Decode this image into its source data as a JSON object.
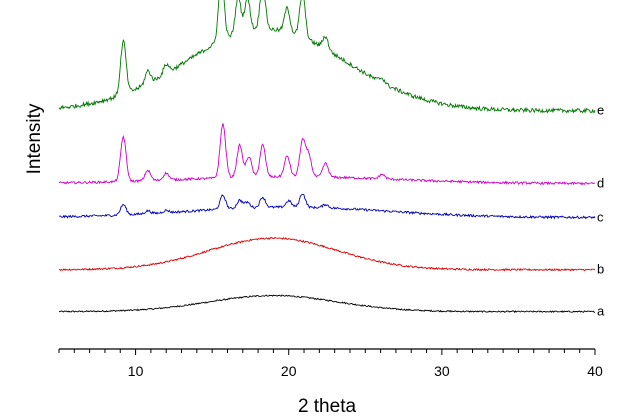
{
  "chart_data": {
    "type": "line",
    "title": "",
    "xlabel": "2 theta",
    "ylabel": "Intensity",
    "xlim": [
      5,
      40
    ],
    "x_ticks": [
      10,
      20,
      30,
      40
    ],
    "y_ticks": [],
    "grid": false,
    "legend": "none",
    "series": [
      {
        "name": "a",
        "color": "#000000",
        "baseline": 0.32,
        "amorphous_height": 0.28,
        "hump_center": 19.0,
        "hump_width": 4.2,
        "noise": 0.012,
        "peaks": []
      },
      {
        "name": "b",
        "color": "#dd0000",
        "baseline": 1.05,
        "amorphous_height": 0.55,
        "hump_center": 19.0,
        "hump_width": 4.2,
        "noise": 0.015,
        "peaks": []
      },
      {
        "name": "c",
        "color": "#0000bb",
        "baseline": 1.96,
        "amorphous_height": 0.18,
        "hump_center": 20.0,
        "hump_width": 6.5,
        "noise": 0.02,
        "peaks": [
          [
            9.2,
            0.18
          ],
          [
            10.8,
            0.05
          ],
          [
            12.0,
            0.04
          ],
          [
            15.7,
            0.24
          ],
          [
            16.8,
            0.14
          ],
          [
            17.3,
            0.1
          ],
          [
            18.3,
            0.18
          ],
          [
            20.0,
            0.11
          ],
          [
            20.9,
            0.24
          ],
          [
            22.4,
            0.06
          ]
        ]
      },
      {
        "name": "d",
        "color": "#cc00cc",
        "baseline": 2.55,
        "amorphous_height": 0.12,
        "hump_center": 20.0,
        "hump_width": 7.0,
        "noise": 0.02,
        "peaks": [
          [
            9.2,
            0.78
          ],
          [
            10.8,
            0.18
          ],
          [
            12.0,
            0.12
          ],
          [
            15.7,
            0.94
          ],
          [
            16.8,
            0.56
          ],
          [
            17.4,
            0.36
          ],
          [
            18.3,
            0.56
          ],
          [
            19.9,
            0.36
          ],
          [
            20.9,
            0.62
          ],
          [
            21.3,
            0.38
          ],
          [
            22.4,
            0.24
          ],
          [
            26.1,
            0.08
          ]
        ]
      },
      {
        "name": "e",
        "color": "#007700",
        "baseline": 3.82,
        "amorphous_height": 1.42,
        "hump_center": 18.5,
        "hump_width": 5.2,
        "noise": 0.035,
        "peaks": [
          [
            9.2,
            0.92
          ],
          [
            10.8,
            0.22
          ],
          [
            12.0,
            0.16
          ],
          [
            15.6,
            1.1
          ],
          [
            16.7,
            0.64
          ],
          [
            17.3,
            0.58
          ],
          [
            18.3,
            0.74
          ],
          [
            19.9,
            0.42
          ],
          [
            20.9,
            0.76
          ],
          [
            22.4,
            0.22
          ],
          [
            26.1,
            0.08
          ]
        ]
      }
    ]
  }
}
